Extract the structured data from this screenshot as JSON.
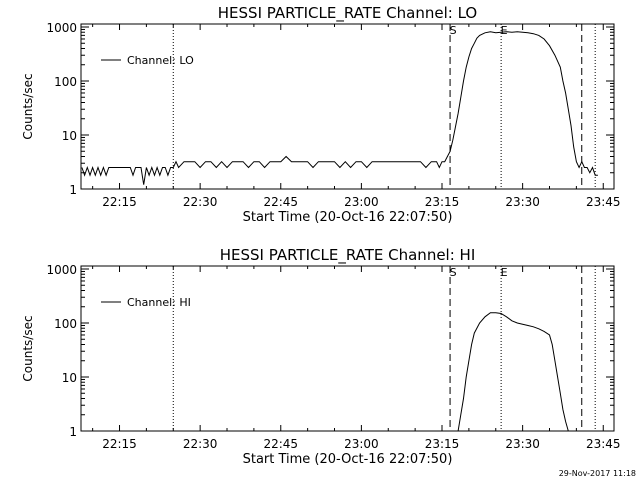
{
  "footer": {
    "timestamp": "29-Nov-2017 11:18"
  },
  "chart_data": [
    {
      "type": "line",
      "title": "HESSI PARTICLE_RATE Channel: LO",
      "xlabel": "Start Time (20-Oct-16 22:07:50)",
      "ylabel": "Counts/sec",
      "yscale": "log",
      "xlim": [
        "22:07:50",
        "23:47:00"
      ],
      "ylim": [
        1,
        1000
      ],
      "x_ticks": [
        "22:15",
        "22:30",
        "22:45",
        "23:00",
        "23:15",
        "23:30",
        "23:45"
      ],
      "y_ticks": [
        "1",
        "10",
        "100",
        "1000"
      ],
      "legend": {
        "placement": "top-left",
        "entries": [
          "Channel: LO"
        ]
      },
      "vertical_markers": [
        {
          "x": "22:25:00",
          "style": "dotted",
          "label": ""
        },
        {
          "x": "23:16:30",
          "style": "dashed",
          "label": "S"
        },
        {
          "x": "23:26:00",
          "style": "dotted",
          "label": "E"
        },
        {
          "x": "23:41:00",
          "style": "dashed",
          "label": ""
        },
        {
          "x": "23:43:30",
          "style": "dotted",
          "label": ""
        }
      ],
      "series": [
        {
          "name": "Channel: LO",
          "x": [
            "22:08:00",
            "22:08:30",
            "22:09:00",
            "22:09:30",
            "22:10:00",
            "22:10:30",
            "22:11:00",
            "22:11:30",
            "22:12:00",
            "22:12:30",
            "22:13:00",
            "22:14:00",
            "22:15:00",
            "22:16:00",
            "22:17:00",
            "22:17:30",
            "22:18:00",
            "22:18:30",
            "22:19:00",
            "22:19:30",
            "22:20:00",
            "22:20:30",
            "22:21:00",
            "22:21:30",
            "22:22:00",
            "22:22:30",
            "22:23:00",
            "22:23:30",
            "22:24:00",
            "22:24:30",
            "22:25:00",
            "22:25:30",
            "22:26:00",
            "22:27:00",
            "22:28:00",
            "22:29:00",
            "22:30:00",
            "22:31:00",
            "22:32:00",
            "22:33:00",
            "22:34:00",
            "22:35:00",
            "22:36:00",
            "22:37:00",
            "22:38:00",
            "22:39:00",
            "22:40:00",
            "22:41:00",
            "22:42:00",
            "22:43:00",
            "22:44:00",
            "22:45:00",
            "22:46:00",
            "22:47:00",
            "22:48:00",
            "22:49:00",
            "22:50:00",
            "22:51:00",
            "22:52:00",
            "22:53:00",
            "22:54:00",
            "22:55:00",
            "22:56:00",
            "22:57:00",
            "22:58:00",
            "22:59:00",
            "23:00:00",
            "23:01:00",
            "23:02:00",
            "23:03:00",
            "23:04:00",
            "23:05:00",
            "23:06:00",
            "23:07:00",
            "23:08:00",
            "23:09:00",
            "23:10:00",
            "23:11:00",
            "23:12:00",
            "23:13:00",
            "23:14:00",
            "23:14:30",
            "23:15:00",
            "23:15:30",
            "23:16:00",
            "23:16:30",
            "23:17:00",
            "23:17:30",
            "23:18:00",
            "23:18:30",
            "23:19:00",
            "23:19:30",
            "23:20:00",
            "23:20:30",
            "23:21:00",
            "23:21:30",
            "23:22:00",
            "23:23:00",
            "23:24:00",
            "23:25:00",
            "23:26:00",
            "23:27:00",
            "23:28:00",
            "23:29:00",
            "23:30:00",
            "23:31:00",
            "23:32:00",
            "23:33:00",
            "23:34:00",
            "23:35:00",
            "23:36:00",
            "23:37:00",
            "23:37:30",
            "23:38:00",
            "23:38:30",
            "23:39:00",
            "23:39:30",
            "23:40:00",
            "23:40:30",
            "23:41:00",
            "23:41:30",
            "23:42:00",
            "23:42:30",
            "23:43:00",
            "23:43:30",
            "23:44:00"
          ],
          "y": [
            2.5,
            1.8,
            2.5,
            1.8,
            2.5,
            1.8,
            2.5,
            1.8,
            2.5,
            1.8,
            2.5,
            2.5,
            2.5,
            2.5,
            2.5,
            1.8,
            2.5,
            2.5,
            2.5,
            1.2,
            2.5,
            1.8,
            2.5,
            1.8,
            2.5,
            1.8,
            2.5,
            2.5,
            1.8,
            2.5,
            2.5,
            3.2,
            2.5,
            3.2,
            3.2,
            3.2,
            2.5,
            3.2,
            3.2,
            2.5,
            3.2,
            2.5,
            3.2,
            3.2,
            3.2,
            2.5,
            3.2,
            3.2,
            2.5,
            3.2,
            3.2,
            3.2,
            4.0,
            3.2,
            3.2,
            3.2,
            3.2,
            2.5,
            3.2,
            3.2,
            3.2,
            3.2,
            2.5,
            3.2,
            2.5,
            3.2,
            3.2,
            2.5,
            3.2,
            3.2,
            3.2,
            3.2,
            3.2,
            3.2,
            3.2,
            3.2,
            3.2,
            3.2,
            2.5,
            3.2,
            3.2,
            2.5,
            3.2,
            3.2,
            4.0,
            5.0,
            8.0,
            14,
            25,
            50,
            100,
            180,
            280,
            400,
            500,
            620,
            700,
            780,
            820,
            780,
            800,
            820,
            800,
            820,
            800,
            780,
            750,
            700,
            600,
            450,
            300,
            180,
            100,
            60,
            30,
            15,
            6.0,
            3.2,
            2.5,
            3.2,
            2.5,
            2.5,
            2.0,
            2.5,
            1.8,
            1.8
          ]
        }
      ]
    },
    {
      "type": "line",
      "title": "HESSI PARTICLE_RATE Channel: HI",
      "xlabel": "Start Time (20-Oct-16 22:07:50)",
      "ylabel": "Counts/sec",
      "yscale": "log",
      "xlim": [
        "22:07:50",
        "23:47:00"
      ],
      "ylim": [
        1,
        1000
      ],
      "x_ticks": [
        "22:15",
        "22:30",
        "22:45",
        "23:00",
        "23:15",
        "23:30",
        "23:45"
      ],
      "y_ticks": [
        "1",
        "10",
        "100",
        "1000"
      ],
      "legend": {
        "placement": "top-left",
        "entries": [
          "Channel: HI"
        ]
      },
      "vertical_markers": [
        {
          "x": "22:25:00",
          "style": "dotted",
          "label": ""
        },
        {
          "x": "23:16:30",
          "style": "dashed",
          "label": "S"
        },
        {
          "x": "23:26:00",
          "style": "dotted",
          "label": "E"
        },
        {
          "x": "23:41:00",
          "style": "dashed",
          "label": ""
        },
        {
          "x": "23:43:30",
          "style": "dotted",
          "label": ""
        }
      ],
      "series": [
        {
          "name": "Channel: HI",
          "x": [
            "23:18:00",
            "23:18:30",
            "23:19:00",
            "23:19:30",
            "23:20:00",
            "23:20:30",
            "23:21:00",
            "23:22:00",
            "23:23:00",
            "23:24:00",
            "23:25:00",
            "23:26:00",
            "23:27:00",
            "23:28:00",
            "23:29:00",
            "23:30:00",
            "23:31:00",
            "23:32:00",
            "23:33:00",
            "23:34:00",
            "23:35:00",
            "23:35:30",
            "23:36:00",
            "23:36:30",
            "23:37:00",
            "23:37:30",
            "23:38:00",
            "23:38:30"
          ],
          "y": [
            1.0,
            2.0,
            4.0,
            10,
            20,
            40,
            65,
            100,
            130,
            155,
            155,
            150,
            130,
            110,
            100,
            95,
            90,
            85,
            78,
            70,
            60,
            40,
            20,
            10,
            5.0,
            2.5,
            1.5,
            1.0
          ]
        }
      ]
    }
  ]
}
